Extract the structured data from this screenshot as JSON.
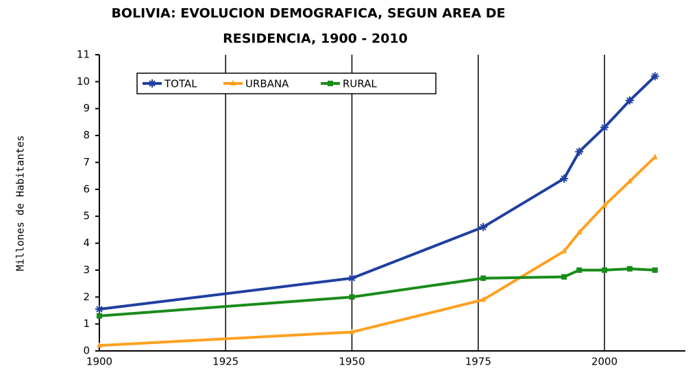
{
  "chart_data": {
    "type": "line",
    "title": [
      "BOLIVIA:  EVOLUCION DEMOGRAFICA, SEGUN AREA DE",
      "RESIDENCIA, 1900 - 2010"
    ],
    "y_label": "Millones de Habitantes",
    "x": [
      1900,
      1950,
      1976,
      1992,
      1995,
      2000,
      2005,
      2010
    ],
    "series": [
      {
        "name": "TOTAL",
        "color": "#1f3fa0",
        "marker": "star",
        "values": [
          1.55,
          2.7,
          4.6,
          6.4,
          7.4,
          8.3,
          9.3,
          10.2
        ]
      },
      {
        "name": "URBANA",
        "color": "#ffa020",
        "marker": "triangle",
        "values": [
          0.2,
          0.7,
          1.9,
          3.7,
          4.4,
          5.4,
          6.3,
          7.2
        ]
      },
      {
        "name": "RURAL",
        "color": "#1a8c1a",
        "marker": "square",
        "values": [
          1.3,
          2.0,
          2.7,
          2.75,
          3.0,
          3.0,
          3.05,
          3.0
        ]
      }
    ],
    "xlim": [
      1900,
      2016
    ],
    "ylim": [
      0,
      11
    ],
    "xticks": [
      1900,
      1925,
      1950,
      1975,
      2000
    ],
    "yticks": [
      0,
      1,
      2,
      3,
      4,
      5,
      6,
      7,
      8,
      9,
      10,
      11
    ],
    "x_grid": true,
    "legend": "top-left"
  }
}
